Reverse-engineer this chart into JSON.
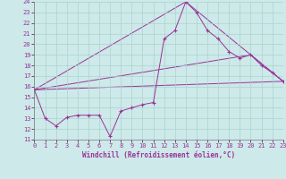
{
  "xlabel": "Windchill (Refroidissement éolien,°C)",
  "ylim": [
    11,
    24
  ],
  "xlim": [
    0,
    23
  ],
  "yticks": [
    11,
    12,
    13,
    14,
    15,
    16,
    17,
    18,
    19,
    20,
    21,
    22,
    23,
    24
  ],
  "xticks": [
    0,
    1,
    2,
    3,
    4,
    5,
    6,
    7,
    8,
    9,
    10,
    11,
    12,
    13,
    14,
    15,
    16,
    17,
    18,
    19,
    20,
    21,
    22,
    23
  ],
  "bg_color": "#cde9e9",
  "line_color": "#993399",
  "grid_color": "#aad4cc",
  "line1_x": [
    0,
    1,
    2,
    3,
    4,
    5,
    6,
    7,
    8,
    9,
    10,
    11,
    12,
    13,
    14,
    15,
    16,
    17,
    18,
    19,
    20,
    21,
    22,
    23
  ],
  "line1_y": [
    15.7,
    13.0,
    12.3,
    13.1,
    13.3,
    13.3,
    13.3,
    11.3,
    13.7,
    14.0,
    14.3,
    14.5,
    20.5,
    21.3,
    24.0,
    23.0,
    21.3,
    20.5,
    19.3,
    18.7,
    19.0,
    18.0,
    17.3,
    16.5
  ],
  "line2_x": [
    0,
    23
  ],
  "line2_y": [
    15.7,
    16.5
  ],
  "line3_x": [
    0,
    14,
    23
  ],
  "line3_y": [
    15.7,
    24.0,
    16.5
  ],
  "line4_x": [
    0,
    20,
    23
  ],
  "line4_y": [
    15.7,
    19.0,
    16.5
  ]
}
